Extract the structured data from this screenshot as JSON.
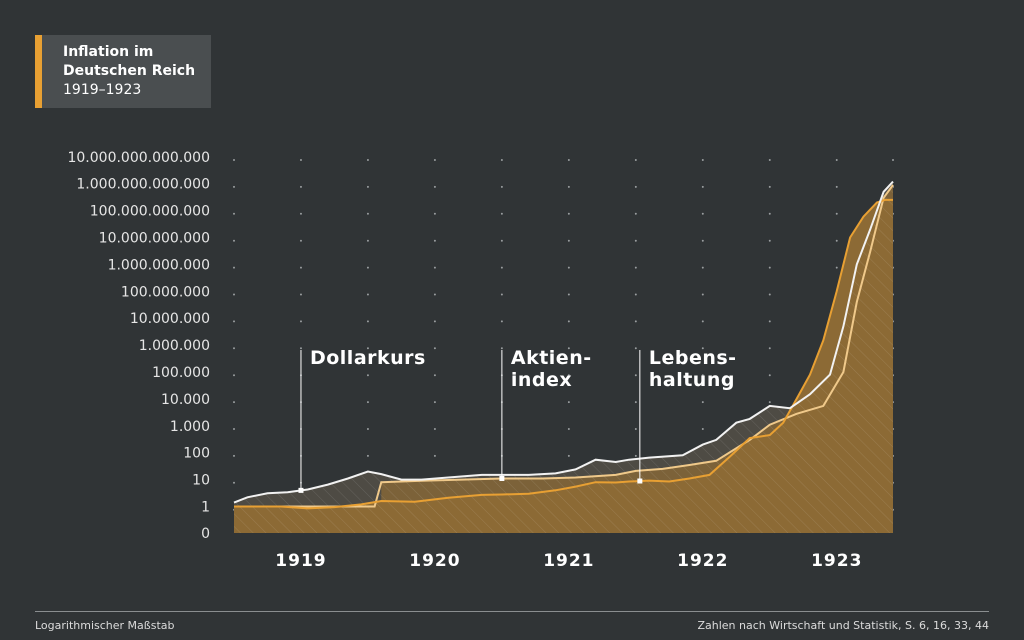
{
  "title": {
    "line1": "Inflation im",
    "line2": "Deutschen Reich",
    "subtitle": "1919–1923"
  },
  "footer": {
    "left": "Logarithmischer Maßstab",
    "right": "Zahlen nach Wirtschaft und Statistik, S. 6, 16, 33, 44"
  },
  "colors": {
    "background": "#303436",
    "white_line": "#f2f2f2",
    "light_orange": "#f0c98a",
    "orange": "#e8a033",
    "area_dark": "#4e4b44",
    "area_orange": "#8c6a35"
  },
  "chart_data": {
    "type": "area",
    "scale": "log",
    "xlabel": "",
    "ylabel": "",
    "yticks": [
      "0",
      "1",
      "10",
      "100",
      "1.000",
      "10.000",
      "100.000",
      "1.000.000",
      "10.000.000",
      "100.000.000",
      "1.000.000.000",
      "10.000.000.000",
      "100.000.000.000",
      "1.000.000.000.000",
      "10.000.000.000.000"
    ],
    "xticks": [
      "1919",
      "1920",
      "1921",
      "1922",
      "1923"
    ],
    "xlim": [
      1919.0,
      1923.92
    ],
    "grid": "dotted vertical",
    "series": [
      {
        "name": "Dollarkurs",
        "color": "white",
        "x": [
          1919.0,
          1919.1,
          1919.25,
          1919.4,
          1919.55,
          1919.7,
          1919.85,
          1920.0,
          1920.1,
          1920.25,
          1920.4,
          1920.6,
          1920.85,
          1921.0,
          1921.2,
          1921.4,
          1921.55,
          1921.7,
          1921.85,
          1921.95,
          1922.1,
          1922.35,
          1922.5,
          1922.6,
          1922.75,
          1922.85,
          1923.0,
          1923.15,
          1923.3,
          1923.45,
          1923.55,
          1923.65,
          1923.75,
          1923.85,
          1923.92
        ],
        "values": [
          1.4,
          2.2,
          3.1,
          3.4,
          4.3,
          6.5,
          11,
          20,
          16,
          10,
          10,
          12,
          15,
          15,
          15,
          17,
          24,
          55,
          45,
          55,
          66,
          80,
          200,
          300,
          1300,
          1800,
          5500,
          4500,
          15000,
          80000,
          5000000,
          1000000000,
          20000000000,
          500000000000,
          1200000000000
        ]
      },
      {
        "name": "Aktienindex",
        "color": "light orange",
        "x": [
          1919.0,
          1919.2,
          1919.35,
          1919.55,
          1919.7,
          1919.9,
          1920.05,
          1920.1,
          1920.4,
          1920.7,
          1921.0,
          1921.3,
          1921.55,
          1921.85,
          1922.0,
          1922.2,
          1922.4,
          1922.6,
          1922.85,
          1923.0,
          1923.2,
          1923.4,
          1923.55,
          1923.65,
          1923.75,
          1923.85,
          1923.92
        ],
        "values": [
          1,
          1,
          1,
          1,
          1,
          1,
          1,
          8,
          9,
          10,
          11,
          11,
          12,
          15,
          21,
          25,
          35,
          50,
          300,
          1100,
          2800,
          5500,
          100000,
          40000000,
          3000000000,
          300000000000,
          900000000000
        ]
      },
      {
        "name": "Lebenshaltung",
        "color": "orange",
        "x": [
          1919.0,
          1919.2,
          1919.35,
          1919.55,
          1919.75,
          1919.95,
          1920.1,
          1920.35,
          1920.6,
          1920.85,
          1921.0,
          1921.2,
          1921.4,
          1921.55,
          1921.7,
          1921.85,
          1921.95,
          1922.1,
          1922.25,
          1922.4,
          1922.55,
          1922.7,
          1922.85,
          1923.0,
          1923.1,
          1923.2,
          1923.3,
          1923.4,
          1923.5,
          1923.6,
          1923.7,
          1923.8,
          1923.86,
          1923.92
        ],
        "values": [
          1,
          1,
          1,
          0.85,
          0.95,
          1.2,
          1.6,
          1.5,
          2.1,
          2.7,
          2.8,
          3,
          4,
          5.5,
          8,
          7.8,
          8.5,
          9.2,
          8.5,
          11,
          15,
          70,
          350,
          450,
          1300,
          10000,
          80000,
          1500000,
          100000000,
          10000000000,
          60000000000,
          200000000000,
          250000000000,
          250000000000
        ]
      }
    ],
    "annotations": [
      {
        "label": "Dollarkurs",
        "x": 1919.5
      },
      {
        "label": "Aktien-\nindex",
        "x": 1921.0
      },
      {
        "label": "Lebens-\nhaltung",
        "x": 1922.03
      }
    ]
  }
}
